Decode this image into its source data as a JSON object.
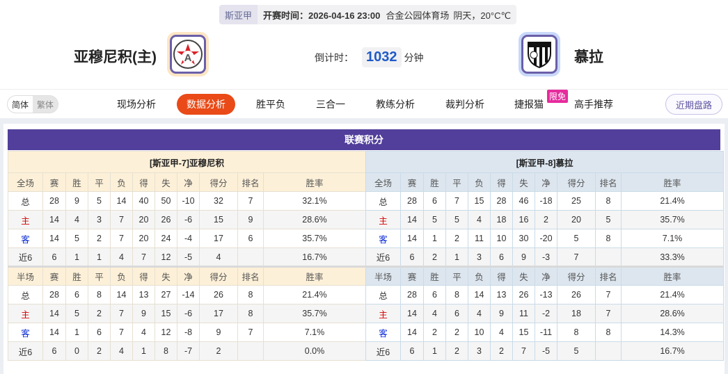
{
  "header": {
    "league": "斯亚甲",
    "kickoff_label": "开赛时间：",
    "kickoff_time": "2026-04-16 23:00",
    "venue": "合金公园体育场",
    "weather": "阴天，20°C℃",
    "home_team": "亚穆尼积(主)",
    "away_team": "慕拉",
    "countdown_label": "倒计时：",
    "countdown_value": "1032",
    "countdown_unit": "分钟"
  },
  "nav": {
    "lang": [
      "简体",
      "繁体"
    ],
    "tabs": [
      "现场分析",
      "数据分析",
      "胜平负",
      "三合一",
      "教练分析",
      "裁判分析",
      "捷报猫",
      "高手推荐"
    ],
    "active_tab": "数据分析",
    "badge": "限免",
    "recent_button": "近期盘路"
  },
  "colors": {
    "accent": "#e94a17",
    "title_bar": "#523f9b",
    "home": "#d40000",
    "away": "#0a2bd6"
  },
  "standings": {
    "title": "联赛积分",
    "columns_full": [
      "全场",
      "赛",
      "胜",
      "平",
      "负",
      "得",
      "失",
      "净",
      "得分",
      "排名",
      "胜率"
    ],
    "columns_half": [
      "半场",
      "赛",
      "胜",
      "平",
      "负",
      "得",
      "失",
      "净",
      "得分",
      "排名",
      "胜率"
    ],
    "teams": [
      {
        "caption": "[斯亚甲-7]亚穆尼积",
        "full": [
          [
            "总",
            "28",
            "9",
            "5",
            "14",
            "40",
            "50",
            "-10",
            "32",
            "7",
            "32.1%"
          ],
          [
            "主",
            "14",
            "4",
            "3",
            "7",
            "20",
            "26",
            "-6",
            "15",
            "9",
            "28.6%"
          ],
          [
            "客",
            "14",
            "5",
            "2",
            "7",
            "20",
            "24",
            "-4",
            "17",
            "6",
            "35.7%"
          ],
          [
            "近6",
            "6",
            "1",
            "1",
            "4",
            "7",
            "12",
            "-5",
            "4",
            "",
            "16.7%"
          ]
        ],
        "half": [
          [
            "总",
            "28",
            "6",
            "8",
            "14",
            "13",
            "27",
            "-14",
            "26",
            "8",
            "21.4%"
          ],
          [
            "主",
            "14",
            "5",
            "2",
            "7",
            "9",
            "15",
            "-6",
            "17",
            "8",
            "35.7%"
          ],
          [
            "客",
            "14",
            "1",
            "6",
            "7",
            "4",
            "12",
            "-8",
            "9",
            "7",
            "7.1%"
          ],
          [
            "近6",
            "6",
            "0",
            "2",
            "4",
            "1",
            "8",
            "-7",
            "2",
            "",
            "0.0%"
          ]
        ]
      },
      {
        "caption": "[斯亚甲-8]慕拉",
        "full": [
          [
            "总",
            "28",
            "6",
            "7",
            "15",
            "28",
            "46",
            "-18",
            "25",
            "8",
            "21.4%"
          ],
          [
            "主",
            "14",
            "5",
            "5",
            "4",
            "18",
            "16",
            "2",
            "20",
            "5",
            "35.7%"
          ],
          [
            "客",
            "14",
            "1",
            "2",
            "11",
            "10",
            "30",
            "-20",
            "5",
            "8",
            "7.1%"
          ],
          [
            "近6",
            "6",
            "2",
            "1",
            "3",
            "6",
            "9",
            "-3",
            "7",
            "",
            "33.3%"
          ]
        ],
        "half": [
          [
            "总",
            "28",
            "6",
            "8",
            "14",
            "13",
            "26",
            "-13",
            "26",
            "7",
            "21.4%"
          ],
          [
            "主",
            "14",
            "4",
            "6",
            "4",
            "9",
            "11",
            "-2",
            "18",
            "7",
            "28.6%"
          ],
          [
            "客",
            "14",
            "2",
            "2",
            "10",
            "4",
            "15",
            "-11",
            "8",
            "8",
            "14.3%"
          ],
          [
            "近6",
            "6",
            "1",
            "2",
            "3",
            "2",
            "7",
            "-5",
            "5",
            "",
            "16.7%"
          ]
        ]
      }
    ]
  }
}
